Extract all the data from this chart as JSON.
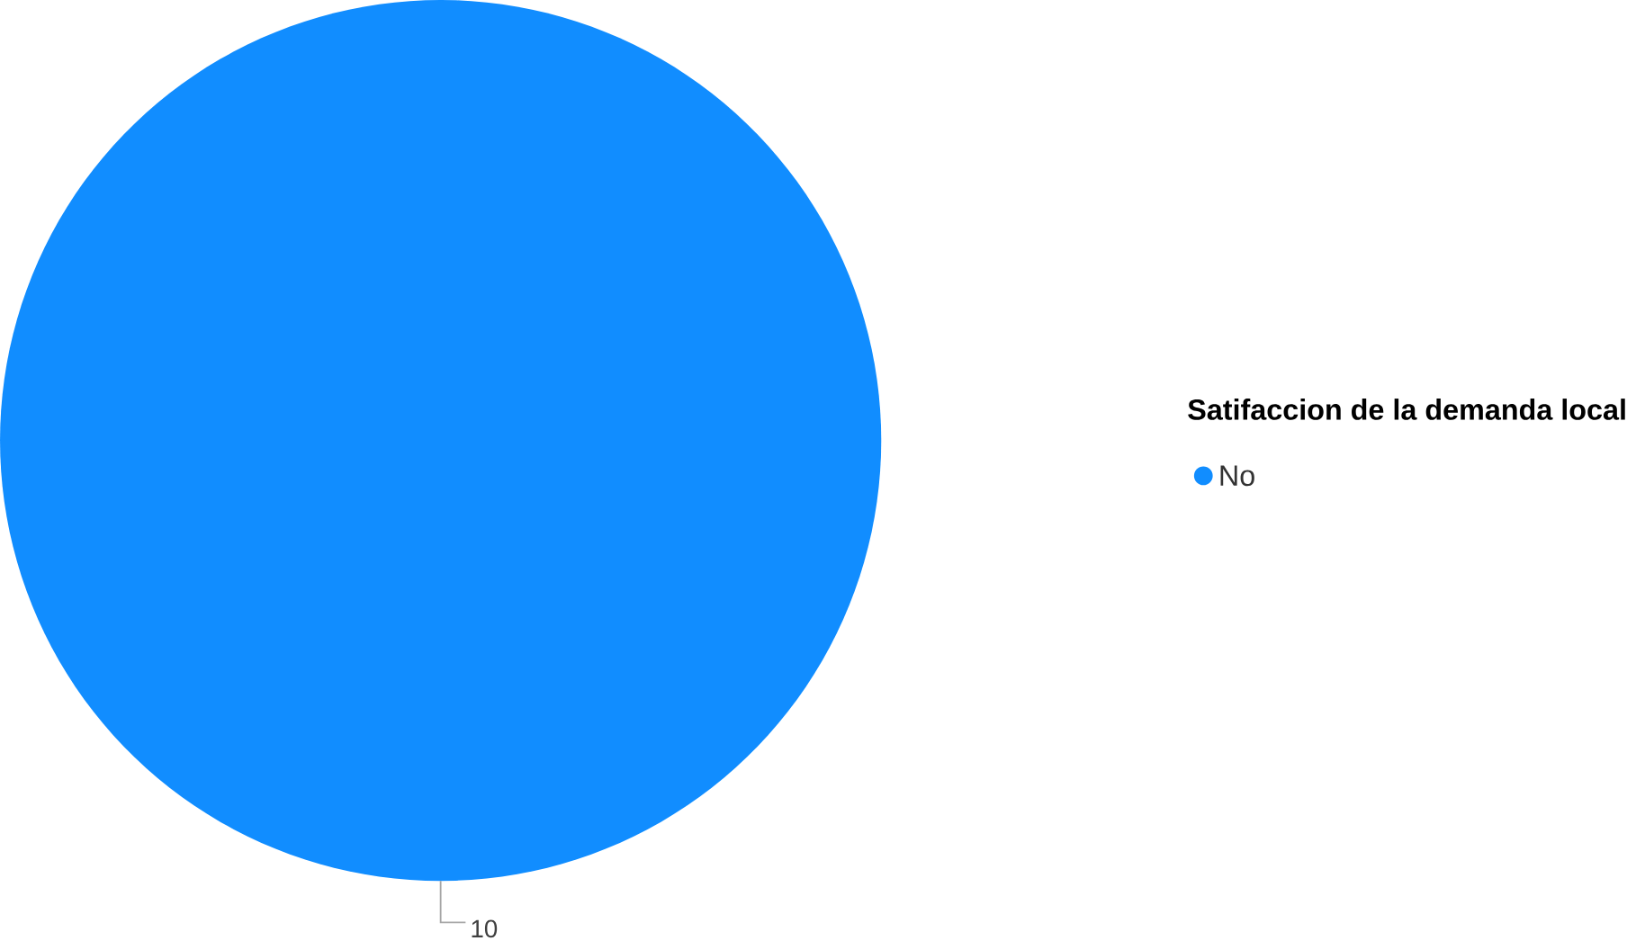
{
  "chart_data": {
    "type": "pie",
    "legend_title": "Satifaccion de la demanda local",
    "categories": [
      "No"
    ],
    "values": [
      10
    ],
    "colors": [
      "#118dff"
    ],
    "data_labels": true,
    "legend": "right"
  }
}
